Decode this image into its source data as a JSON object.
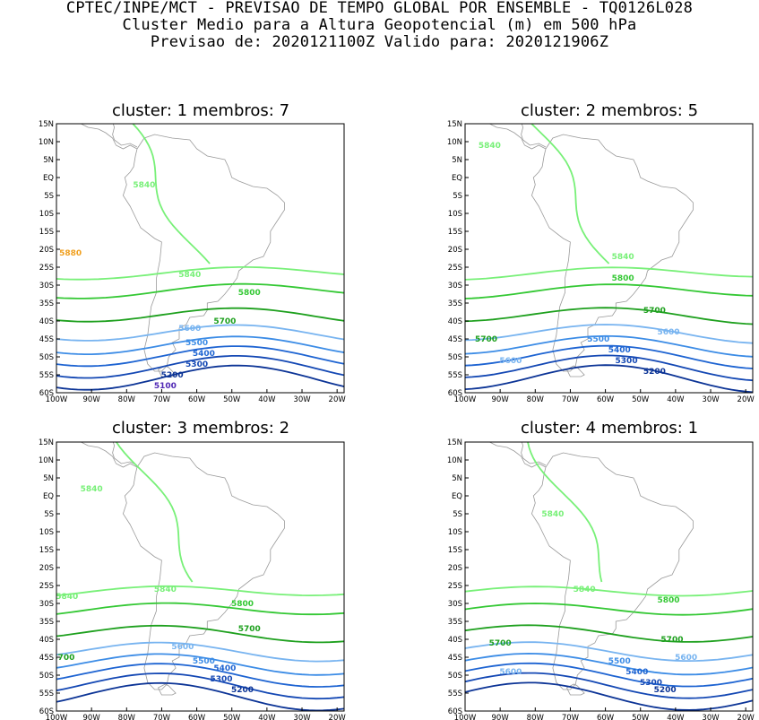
{
  "header": {
    "line1": "CPTEC/INPE/MCT - PREVISAO DE TEMPO GLOBAL POR ENSEMBLE - TQ0126L028",
    "line2": "Cluster Medio para a Altura Geopotencial (m) em 500 hPa",
    "line3": "Previsao de: 2020121100Z   Valido para: 2020121906Z"
  },
  "axes": {
    "lat_labels": [
      "15N",
      "10N",
      "5N",
      "EQ",
      "5S",
      "10S",
      "15S",
      "20S",
      "25S",
      "30S",
      "35S",
      "40S",
      "45S",
      "50S",
      "55S",
      "60S"
    ],
    "lon_labels": [
      "100W",
      "90W",
      "80W",
      "70W",
      "60W",
      "50W",
      "40W",
      "30W",
      "20W"
    ]
  },
  "colors": {
    "c5880": "#f0a020",
    "c5840": "#78f078",
    "c5800": "#34c834",
    "c5700": "#1ea01e",
    "c5600": "#78b4f0",
    "c5500": "#3c8ce6",
    "c5400": "#1e64d2",
    "c5300": "#1448b4",
    "c5200": "#0c3496",
    "c5100": "#5028b4"
  },
  "panels": [
    {
      "title": "cluster: 1   membros: 7",
      "labels": [
        {
          "text": "5880",
          "lon": -96,
          "lat": -21,
          "level": "c5880"
        },
        {
          "text": "5840",
          "lon": -75,
          "lat": -2,
          "level": "c5840"
        },
        {
          "text": "5840",
          "lon": -62,
          "lat": -27,
          "level": "c5840"
        },
        {
          "text": "5800",
          "lon": -45,
          "lat": -32,
          "level": "c5800"
        },
        {
          "text": "5700",
          "lon": -52,
          "lat": -40,
          "level": "c5700"
        },
        {
          "text": "5600",
          "lon": -62,
          "lat": -42,
          "level": "c5600"
        },
        {
          "text": "5500",
          "lon": -60,
          "lat": -46,
          "level": "c5500"
        },
        {
          "text": "5400",
          "lon": -58,
          "lat": -49,
          "level": "c5400"
        },
        {
          "text": "5300",
          "lon": -60,
          "lat": -52,
          "level": "c5300"
        },
        {
          "text": "5200",
          "lon": -67,
          "lat": -55,
          "level": "c5200"
        },
        {
          "text": "5100",
          "lon": -69,
          "lat": -58,
          "level": "c5100"
        }
      ]
    },
    {
      "title": "cluster: 2   membros: 5",
      "labels": [
        {
          "text": "5840",
          "lon": -93,
          "lat": 9,
          "level": "c5840"
        },
        {
          "text": "5840",
          "lon": -55,
          "lat": -22,
          "level": "c5840"
        },
        {
          "text": "5800",
          "lon": -55,
          "lat": -28,
          "level": "c5800"
        },
        {
          "text": "5700",
          "lon": -46,
          "lat": -37,
          "level": "c5700"
        },
        {
          "text": "5700",
          "lon": -94,
          "lat": -45,
          "level": "c5700"
        },
        {
          "text": "5600",
          "lon": -42,
          "lat": -43,
          "level": "c5600"
        },
        {
          "text": "5600",
          "lon": -87,
          "lat": -51,
          "level": "c5600"
        },
        {
          "text": "5500",
          "lon": -62,
          "lat": -45,
          "level": "c5500"
        },
        {
          "text": "5400",
          "lon": -56,
          "lat": -48,
          "level": "c5400"
        },
        {
          "text": "5300",
          "lon": -54,
          "lat": -51,
          "level": "c5300"
        },
        {
          "text": "5200",
          "lon": -46,
          "lat": -54,
          "level": "c5200"
        }
      ]
    },
    {
      "title": "cluster: 3   membros: 2",
      "labels": [
        {
          "text": "5840",
          "lon": -90,
          "lat": 2,
          "level": "c5840"
        },
        {
          "text": "5840",
          "lon": -97,
          "lat": -28,
          "level": "c5840"
        },
        {
          "text": "5840",
          "lon": -69,
          "lat": -26,
          "level": "c5840"
        },
        {
          "text": "5800",
          "lon": -47,
          "lat": -30,
          "level": "c5800"
        },
        {
          "text": "5700",
          "lon": -45,
          "lat": -37,
          "level": "c5700"
        },
        {
          "text": "5700",
          "lon": -98,
          "lat": -45,
          "level": "c5700"
        },
        {
          "text": "5600",
          "lon": -64,
          "lat": -42,
          "level": "c5600"
        },
        {
          "text": "5500",
          "lon": -58,
          "lat": -46,
          "level": "c5500"
        },
        {
          "text": "5400",
          "lon": -52,
          "lat": -48,
          "level": "c5400"
        },
        {
          "text": "5300",
          "lon": -53,
          "lat": -51,
          "level": "c5300"
        },
        {
          "text": "5200",
          "lon": -47,
          "lat": -54,
          "level": "c5200"
        }
      ]
    },
    {
      "title": "cluster: 4   membros: 1",
      "labels": [
        {
          "text": "5840",
          "lon": -75,
          "lat": -5,
          "level": "c5840"
        },
        {
          "text": "5840",
          "lon": -66,
          "lat": -26,
          "level": "c5840"
        },
        {
          "text": "5800",
          "lon": -42,
          "lat": -29,
          "level": "c5800"
        },
        {
          "text": "5700",
          "lon": -41,
          "lat": -40,
          "level": "c5700"
        },
        {
          "text": "5700",
          "lon": -90,
          "lat": -41,
          "level": "c5700"
        },
        {
          "text": "5600",
          "lon": -37,
          "lat": -45,
          "level": "c5600"
        },
        {
          "text": "5600",
          "lon": -87,
          "lat": -49,
          "level": "c5600"
        },
        {
          "text": "5500",
          "lon": -56,
          "lat": -46,
          "level": "c5500"
        },
        {
          "text": "5400",
          "lon": -51,
          "lat": -49,
          "level": "c5400"
        },
        {
          "text": "5300",
          "lon": -47,
          "lat": -52,
          "level": "c5300"
        },
        {
          "text": "5200",
          "lon": -43,
          "lat": -54,
          "level": "c5200"
        }
      ]
    }
  ]
}
